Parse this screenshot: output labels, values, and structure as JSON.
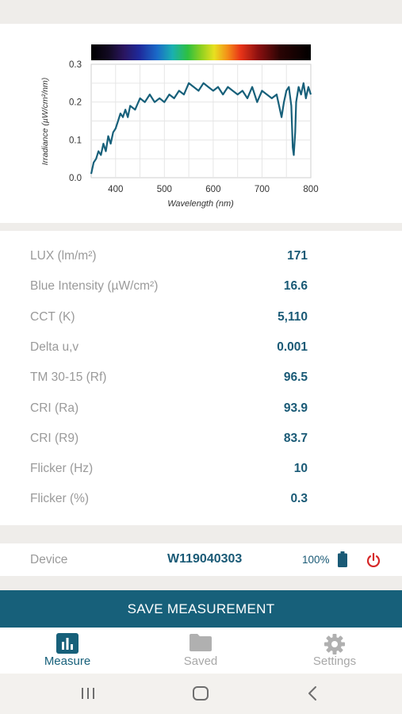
{
  "colors": {
    "accent": "#17607a",
    "value_text": "#1a5a76",
    "label_text": "#9a9a9a",
    "nav_inactive": "#a8a8a8",
    "power": "#d62828"
  },
  "chart_data": {
    "type": "line",
    "title": "",
    "xlabel": "Wavelength (nm)",
    "ylabel": "Irradiance (µW/cm²/nm)",
    "xlim": [
      350,
      800
    ],
    "ylim": [
      0.0,
      0.3
    ],
    "x_ticks": [
      "400",
      "500",
      "600",
      "700",
      "800"
    ],
    "y_ticks": [
      "0.0",
      "0.1",
      "0.2",
      "0.3"
    ],
    "grid": true,
    "legend": "none",
    "spectrum_bar": "visible-spectrum gradient above plot",
    "series": [
      {
        "color": "#17607a",
        "x": [
          350,
          355,
          360,
          365,
          370,
          375,
          380,
          385,
          390,
          395,
          400,
          405,
          410,
          415,
          420,
          425,
          430,
          440,
          450,
          460,
          470,
          480,
          490,
          500,
          510,
          520,
          530,
          540,
          550,
          560,
          570,
          580,
          590,
          600,
          610,
          620,
          630,
          640,
          650,
          660,
          670,
          680,
          690,
          700,
          710,
          720,
          730,
          740,
          745,
          750,
          755,
          760,
          763,
          765,
          768,
          770,
          775,
          780,
          785,
          790,
          795,
          800
        ],
        "values": [
          0.01,
          0.04,
          0.05,
          0.07,
          0.06,
          0.09,
          0.07,
          0.11,
          0.09,
          0.12,
          0.13,
          0.15,
          0.17,
          0.16,
          0.18,
          0.16,
          0.19,
          0.18,
          0.21,
          0.2,
          0.22,
          0.2,
          0.21,
          0.2,
          0.22,
          0.21,
          0.23,
          0.22,
          0.25,
          0.24,
          0.23,
          0.25,
          0.24,
          0.23,
          0.24,
          0.22,
          0.24,
          0.23,
          0.22,
          0.23,
          0.21,
          0.24,
          0.2,
          0.23,
          0.22,
          0.21,
          0.22,
          0.16,
          0.2,
          0.23,
          0.24,
          0.19,
          0.08,
          0.06,
          0.12,
          0.2,
          0.24,
          0.22,
          0.25,
          0.21,
          0.24,
          0.22
        ]
      }
    ]
  },
  "metrics": [
    {
      "label": "LUX (lm/m²)",
      "value": "171"
    },
    {
      "label": "Blue Intensity (µW/cm²)",
      "value": "16.6"
    },
    {
      "label": "CCT (K)",
      "value": "5,110"
    },
    {
      "label": "Delta u,v",
      "value": "0.001"
    },
    {
      "label": "TM 30-15 (Rf)",
      "value": "96.5"
    },
    {
      "label": "CRI (Ra)",
      "value": "93.9"
    },
    {
      "label": "CRI (R9)",
      "value": "83.7"
    },
    {
      "label": "Flicker (Hz)",
      "value": "10"
    },
    {
      "label": "Flicker (%)",
      "value": "0.3"
    }
  ],
  "device": {
    "label": "Device",
    "id": "W119040303",
    "battery": "100%",
    "battery_icon": "battery-full-icon",
    "power_icon": "power-icon"
  },
  "save_button": {
    "label": "SAVE MEASUREMENT"
  },
  "bottom_nav": [
    {
      "label": "Measure",
      "icon": "bar-chart-icon",
      "active": true
    },
    {
      "label": "Saved",
      "icon": "folder-icon",
      "active": false
    },
    {
      "label": "Settings",
      "icon": "gear-icon",
      "active": false
    }
  ],
  "system_nav": {
    "recents_icon": "recents-icon",
    "home_icon": "home-icon",
    "back_icon": "back-icon"
  }
}
